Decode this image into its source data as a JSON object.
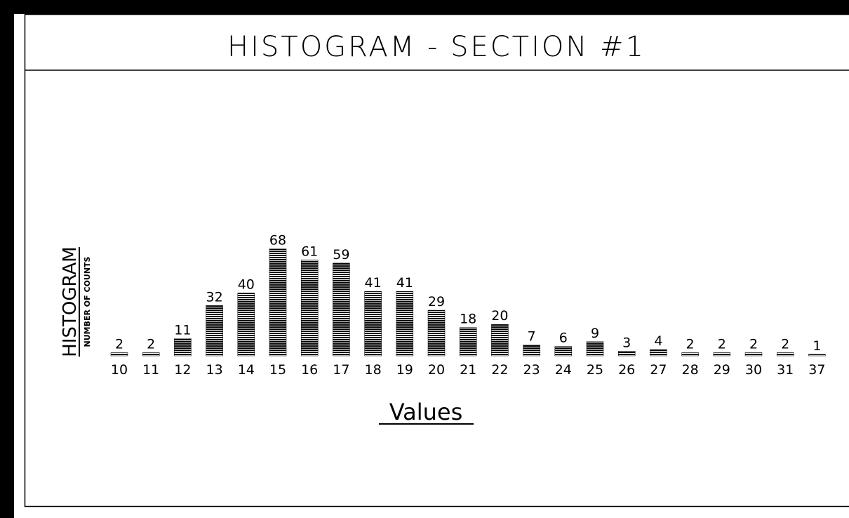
{
  "chart_data": {
    "type": "bar",
    "title": "HISTOGRAM - SECTION #1",
    "y_label": "HISTOGRAM",
    "y_sublabel": "NUMBER OF COUNTS",
    "x_label": "Values",
    "color": "#000000",
    "categories": [
      "10",
      "11",
      "12",
      "13",
      "14",
      "15",
      "16",
      "17",
      "18",
      "19",
      "20",
      "21",
      "22",
      "23",
      "24",
      "25",
      "26",
      "27",
      "28",
      "29",
      "30",
      "31",
      "37"
    ],
    "values": [
      2,
      2,
      11,
      32,
      40,
      68,
      61,
      59,
      41,
      41,
      29,
      18,
      20,
      7,
      6,
      9,
      3,
      4,
      2,
      2,
      2,
      2,
      1
    ]
  }
}
